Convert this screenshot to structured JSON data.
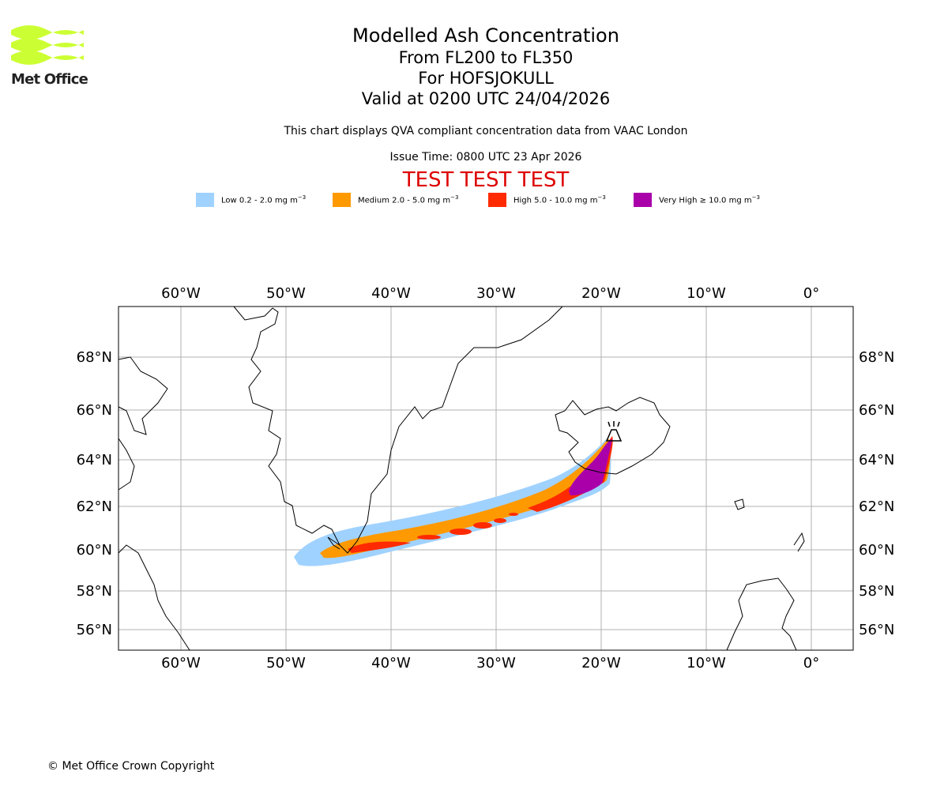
{
  "logo": {
    "text": "Met Office",
    "color": "#ccff33"
  },
  "header": {
    "title": "Modelled Ash Concentration",
    "levels": "From FL200 to FL350",
    "volcano": "For HOFSJOKULL",
    "valid": "Valid at 0200 UTC 24/04/2026",
    "compliance": "This chart displays QVA compliant concentration data from VAAC London",
    "issue": "Issue Time: 0800 UTC 23 Apr 2026",
    "test_banner": "TEST TEST TEST",
    "test_color": "#dd0000"
  },
  "legend": [
    {
      "name": "low",
      "label": "Low 0.2 - 2.0 mg m",
      "unit_exp": "−3",
      "color": "#a0d2ff"
    },
    {
      "name": "medium",
      "label": "Medium 2.0 - 5.0 mg m",
      "unit_exp": "−3",
      "color": "#ff9900"
    },
    {
      "name": "high",
      "label": "High 5.0 - 10.0 mg m",
      "unit_exp": "−3",
      "color": "#ff2a00"
    },
    {
      "name": "very-high",
      "label": "Very High  ≥  10.0 mg m",
      "unit_exp": "−3",
      "color": "#aa00aa"
    }
  ],
  "map": {
    "lon_ticks": [
      "60°W",
      "50°W",
      "40°W",
      "30°W",
      "20°W",
      "10°W",
      "0°"
    ],
    "lat_ticks": [
      "68°N",
      "66°N",
      "64°N",
      "62°N",
      "60°N",
      "58°N",
      "56°N"
    ],
    "extent": {
      "lon_min": -66,
      "lon_max": 4,
      "lat_min": 55,
      "lat_max": 70
    },
    "volcano": {
      "name": "Hofsjokull",
      "lon": -18.9,
      "lat": 64.8
    }
  },
  "footer": {
    "copyright": "© Met Office Crown Copyright"
  }
}
